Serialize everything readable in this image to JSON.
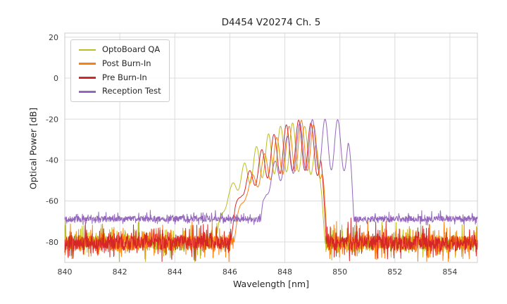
{
  "chart_data": {
    "type": "line",
    "title": "D4454 V20274 Ch. 5",
    "xlabel": "Wavelength [nm]",
    "ylabel": "Optical Power [dB]",
    "xlim": [
      840,
      855
    ],
    "ylim": [
      -90,
      22
    ],
    "xticks": [
      840,
      842,
      844,
      846,
      848,
      850,
      852,
      854
    ],
    "yticks": [
      20,
      0,
      -20,
      -40,
      -60,
      -80
    ],
    "grid": true,
    "legend_position": "upper-left",
    "grid_color": "#dcdcdc",
    "border_color": "#cccccc",
    "series": [
      {
        "name": "OptoBoard QA",
        "color": "#bcbd22",
        "seed": 3,
        "noise_base": -80.5,
        "noise_amp": 3.5,
        "spike_up": 9,
        "spike_down": 8,
        "mode_spacing": 0.44,
        "mode_phase": 848.28,
        "mode_depth_ref": -60,
        "envelope": [
          [
            840,
            -96
          ],
          [
            845.2,
            -96
          ],
          [
            845.6,
            -70
          ],
          [
            845.95,
            -55
          ],
          [
            846.3,
            -46
          ],
          [
            846.7,
            -38
          ],
          [
            847.1,
            -31
          ],
          [
            847.5,
            -26
          ],
          [
            847.9,
            -23
          ],
          [
            848.3,
            -21.8
          ],
          [
            848.6,
            -22.5
          ],
          [
            848.9,
            -25
          ],
          [
            849.1,
            -30
          ],
          [
            849.3,
            -45
          ],
          [
            849.45,
            -75
          ],
          [
            849.55,
            -96
          ],
          [
            855,
            -96
          ]
        ]
      },
      {
        "name": "Post Burn-In",
        "color": "#ff7f0e",
        "seed": 11,
        "noise_base": -80.5,
        "noise_amp": 3.5,
        "spike_up": 9,
        "spike_down": 8,
        "mode_spacing": 0.45,
        "mode_phase": 848.6,
        "mode_depth_ref": -60,
        "envelope": [
          [
            840,
            -96
          ],
          [
            845.9,
            -96
          ],
          [
            846.3,
            -65
          ],
          [
            846.7,
            -50
          ],
          [
            847.1,
            -40
          ],
          [
            847.5,
            -32
          ],
          [
            847.9,
            -26
          ],
          [
            848.3,
            -22
          ],
          [
            848.6,
            -20.5
          ],
          [
            848.9,
            -21
          ],
          [
            849.15,
            -24
          ],
          [
            849.35,
            -35
          ],
          [
            849.5,
            -70
          ],
          [
            849.6,
            -96
          ],
          [
            855,
            -96
          ]
        ]
      },
      {
        "name": "Pre Burn-In",
        "color": "#d62728",
        "seed": 23,
        "noise_base": -80.5,
        "noise_amp": 3.5,
        "spike_up": 9,
        "spike_down": 8,
        "mode_spacing": 0.45,
        "mode_phase": 848.5,
        "mode_depth_ref": -60,
        "envelope": [
          [
            840,
            -96
          ],
          [
            845.8,
            -96
          ],
          [
            846.2,
            -62
          ],
          [
            846.6,
            -48
          ],
          [
            847.0,
            -38
          ],
          [
            847.4,
            -30
          ],
          [
            847.8,
            -25
          ],
          [
            848.2,
            -21.5
          ],
          [
            848.55,
            -20.3
          ],
          [
            848.85,
            -20.8
          ],
          [
            849.1,
            -23.5
          ],
          [
            849.3,
            -33
          ],
          [
            849.45,
            -65
          ],
          [
            849.58,
            -96
          ],
          [
            855,
            -96
          ]
        ]
      },
      {
        "name": "Reception Test",
        "color": "#9467bd",
        "seed": 31,
        "noise_base": -68.8,
        "noise_amp": 1.4,
        "spike_up": 3,
        "spike_down": 2,
        "mode_spacing": 0.46,
        "mode_phase": 849.0,
        "mode_depth_ref": -60,
        "envelope": [
          [
            840,
            -96
          ],
          [
            846.9,
            -96
          ],
          [
            847.2,
            -60
          ],
          [
            847.5,
            -45
          ],
          [
            847.8,
            -35
          ],
          [
            848.1,
            -28
          ],
          [
            848.4,
            -23
          ],
          [
            848.7,
            -20.8
          ],
          [
            849.0,
            -20.2
          ],
          [
            849.3,
            -20
          ],
          [
            849.6,
            -20
          ],
          [
            849.9,
            -20.2
          ],
          [
            850.15,
            -21
          ],
          [
            850.3,
            -26
          ],
          [
            850.42,
            -45
          ],
          [
            850.52,
            -70
          ],
          [
            850.6,
            -96
          ],
          [
            855,
            -96
          ]
        ]
      }
    ]
  }
}
